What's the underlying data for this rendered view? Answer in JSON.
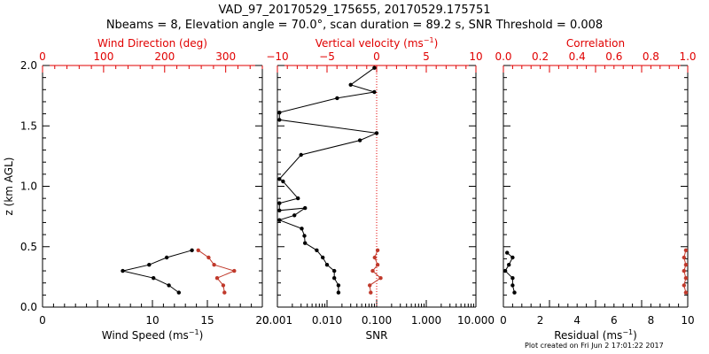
{
  "header": {
    "title_line1": "VAD_97_20170529_175655, 20170529.175751",
    "title_line2": "Nbeams = 8, Elevation angle = 70.0°, scan duration = 89.2 s, SNR Threshold = 0.008"
  },
  "footer": {
    "credit": "Plot created on Fri Jun  2 17:01:22 2017"
  },
  "colors": {
    "primary": "#000000",
    "secondary": "#c0392b",
    "secondary_axis": "#e00000"
  },
  "chart_data": [
    {
      "type": "line",
      "name": "wind-panel",
      "ylabel": "z (km AGL)",
      "ylim": [
        0,
        2
      ],
      "yticks": [
        "0.0",
        "0.5",
        "1.0",
        "1.5",
        "2.0"
      ],
      "bottom_axis": {
        "label": "Wind Speed",
        "unit": "ms",
        "exp": "−1",
        "range": [
          0,
          20
        ],
        "ticks": [
          "0",
          "10",
          "15",
          "20"
        ],
        "tick_values": [
          0,
          10,
          15,
          20
        ],
        "minor_every": 1,
        "scale": "linear"
      },
      "top_axis": {
        "label": "Wind Direction (deg)",
        "range": [
          0,
          360
        ],
        "ticks": [
          "0",
          "100",
          "200",
          "300"
        ],
        "tick_values": [
          0,
          100,
          200,
          300
        ],
        "minor_every": 20,
        "scale": "linear"
      },
      "series": [
        {
          "axis": "bottom",
          "color": "black",
          "points": [
            [
              13.6,
              0.47
            ],
            [
              11.3,
              0.41
            ],
            [
              9.7,
              0.35
            ],
            [
              7.3,
              0.3
            ],
            [
              10.1,
              0.24
            ],
            [
              11.5,
              0.18
            ],
            [
              12.4,
              0.12
            ]
          ]
        },
        {
          "axis": "top",
          "color": "red",
          "points": [
            [
              255,
              0.47
            ],
            [
              272,
              0.41
            ],
            [
              281,
              0.35
            ],
            [
              314,
              0.3
            ],
            [
              286,
              0.24
            ],
            [
              296,
              0.18
            ],
            [
              298,
              0.12
            ]
          ]
        }
      ]
    },
    {
      "type": "line",
      "name": "snr-panel",
      "ylim": [
        0,
        2
      ],
      "bottom_axis": {
        "label": "SNR",
        "range": [
          0.001,
          10
        ],
        "scale": "log",
        "ticks": [
          "0.001",
          "0.010",
          "0.100",
          "1.000",
          "10.000"
        ],
        "tick_values": [
          0.001,
          0.01,
          0.1,
          1,
          10
        ]
      },
      "top_axis": {
        "label": "Vertical velocity",
        "unit": "ms",
        "exp": "−1",
        "range": [
          -10,
          10
        ],
        "ticks": [
          "−10",
          "−5",
          "0",
          "5",
          "10"
        ],
        "tick_values": [
          -10,
          -5,
          0,
          5,
          10
        ],
        "minor_every": 1,
        "scale": "linear"
      },
      "reference_line": {
        "axis": "top",
        "value": 0,
        "style": "dotted",
        "color": "red"
      },
      "series": [
        {
          "axis": "bottom",
          "color": "black",
          "points": [
            [
              0.09,
              1.98
            ],
            [
              0.03,
              1.84
            ],
            [
              0.09,
              1.78
            ],
            [
              0.016,
              1.73
            ],
            [
              0.0011,
              1.61
            ],
            [
              0.0011,
              1.55
            ],
            [
              0.1,
              1.44
            ],
            [
              0.046,
              1.38
            ],
            [
              0.003,
              1.26
            ],
            [
              0.0011,
              1.06
            ],
            [
              0.0013,
              1.04
            ],
            [
              0.0026,
              0.9
            ],
            [
              0.0011,
              0.86
            ],
            [
              0.0011,
              0.8
            ],
            [
              0.0036,
              0.82
            ],
            [
              0.0022,
              0.76
            ],
            [
              0.0011,
              0.72
            ],
            [
              0.0031,
              0.65
            ],
            [
              0.0035,
              0.59
            ],
            [
              0.0036,
              0.53
            ],
            [
              0.0062,
              0.47
            ],
            [
              0.0082,
              0.41
            ],
            [
              0.01,
              0.35
            ],
            [
              0.014,
              0.3
            ],
            [
              0.014,
              0.24
            ],
            [
              0.017,
              0.18
            ],
            [
              0.017,
              0.12
            ]
          ]
        },
        {
          "axis": "top",
          "color": "red",
          "points": [
            [
              0.1,
              0.47
            ],
            [
              -0.2,
              0.41
            ],
            [
              0.1,
              0.35
            ],
            [
              -0.4,
              0.3
            ],
            [
              0.4,
              0.24
            ],
            [
              -0.7,
              0.18
            ],
            [
              -0.6,
              0.12
            ]
          ]
        }
      ]
    },
    {
      "type": "line",
      "name": "residual-panel",
      "ylim": [
        0,
        2
      ],
      "bottom_axis": {
        "label": "Residual",
        "unit": "ms",
        "exp": "−1",
        "range": [
          0,
          10
        ],
        "ticks": [
          "0",
          "2",
          "4",
          "6",
          "8",
          "10"
        ],
        "tick_values": [
          0,
          2,
          4,
          6,
          8,
          10
        ],
        "minor_every": 0.5,
        "scale": "linear"
      },
      "top_axis": {
        "label": "Correlation",
        "range": [
          0,
          1
        ],
        "ticks": [
          "0.0",
          "0.2",
          "0.4",
          "0.6",
          "0.8",
          "1.0"
        ],
        "tick_values": [
          0,
          0.2,
          0.4,
          0.6,
          0.8,
          1.0
        ],
        "minor_every": 0.05,
        "scale": "linear"
      },
      "series": [
        {
          "axis": "bottom",
          "color": "black",
          "points": [
            [
              0.2,
              0.45
            ],
            [
              0.5,
              0.41
            ],
            [
              0.3,
              0.35
            ],
            [
              0.1,
              0.3
            ],
            [
              0.5,
              0.24
            ],
            [
              0.5,
              0.18
            ],
            [
              0.6,
              0.12
            ]
          ]
        },
        {
          "axis": "top",
          "color": "red",
          "points": [
            [
              0.99,
              0.47
            ],
            [
              0.98,
              0.41
            ],
            [
              0.99,
              0.35
            ],
            [
              0.98,
              0.3
            ],
            [
              0.99,
              0.24
            ],
            [
              0.98,
              0.18
            ],
            [
              0.99,
              0.12
            ]
          ]
        }
      ]
    }
  ]
}
